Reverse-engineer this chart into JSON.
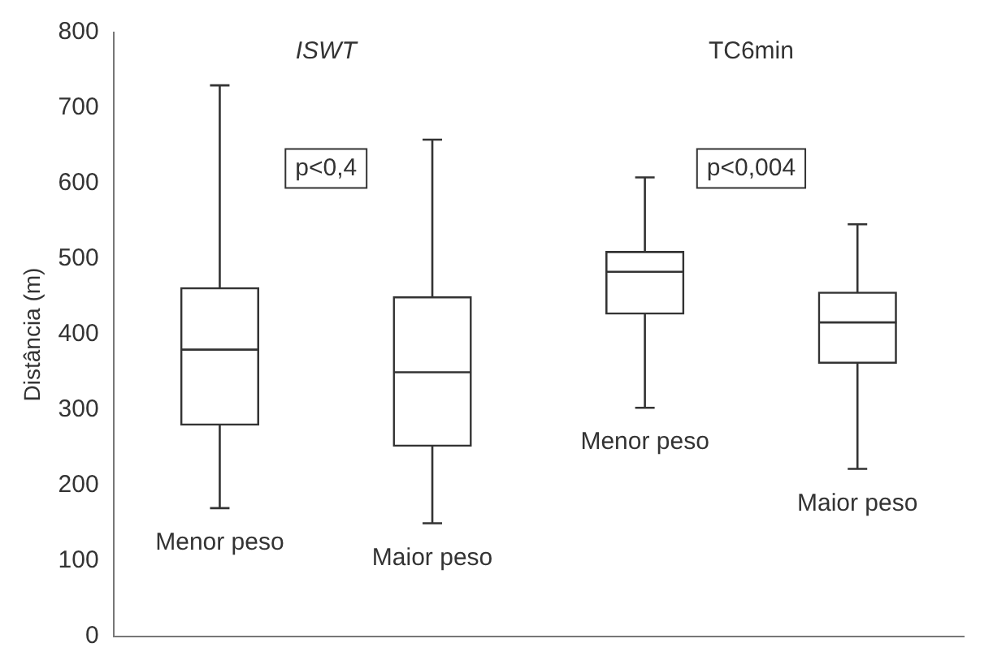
{
  "chart_data": {
    "type": "box",
    "ylabel": "Distância (m)",
    "categories": [
      "Menor peso",
      "Maior peso",
      "Menor peso",
      "Maior peso"
    ],
    "series": [
      {
        "color": "#333333",
        "boxes": [
          {
            "low": 170,
            "q1": 280,
            "median": 380,
            "q3": 462,
            "high": 730
          },
          {
            "low": 150,
            "q1": 252,
            "median": 350,
            "q3": 450,
            "high": 658
          },
          {
            "low": 303,
            "q1": 427,
            "median": 483,
            "q3": 510,
            "high": 608
          },
          {
            "low": 222,
            "q1": 362,
            "median": 416,
            "q3": 456,
            "high": 546
          }
        ]
      }
    ],
    "ylim": [
      0,
      800
    ],
    "yticks": [
      0,
      100,
      200,
      300,
      400,
      500,
      600,
      700,
      800
    ],
    "grid": false,
    "legend": false,
    "annotations": [
      "ISWT",
      "p<0,4",
      "TC6min",
      "p<0,004"
    ]
  }
}
